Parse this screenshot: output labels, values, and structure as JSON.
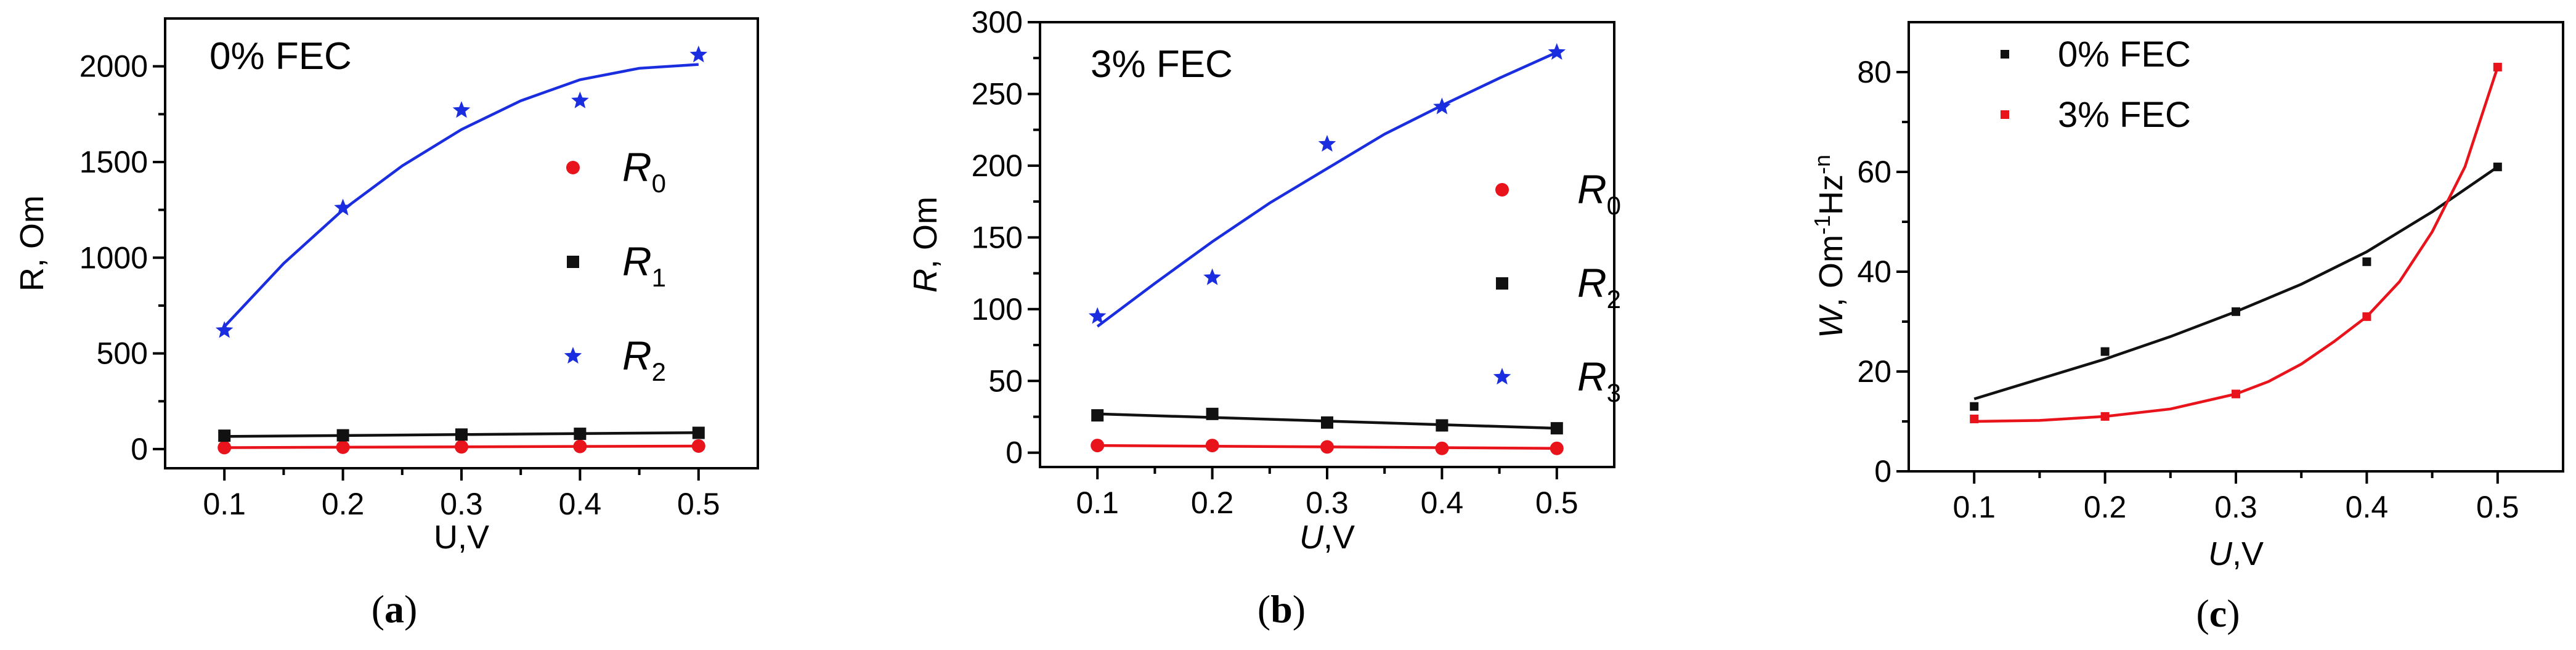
{
  "figure": {
    "captions": [
      "(a)",
      "(b)",
      "(c)"
    ]
  },
  "chart_data": [
    {
      "type": "scatter",
      "panel_caption": "(a)",
      "title": "0% FEC",
      "xlabel": "U,V",
      "ylabel": "R, Om",
      "xlim": [
        0.05,
        0.55
      ],
      "ylim": [
        -100,
        2250
      ],
      "xticks": [
        "0.1",
        "0.2",
        "0.3",
        "0.4",
        "0.5"
      ],
      "xtick_values": [
        0.1,
        0.2,
        0.3,
        0.4,
        0.5
      ],
      "yticks": [
        "0",
        "500",
        "1000",
        "1500",
        "2000"
      ],
      "ytick_values": [
        0,
        500,
        1000,
        1500,
        2000
      ],
      "series": [
        {
          "name": "R0",
          "label_main": "R",
          "label_sub": "0",
          "marker": "circle",
          "color": "#e8131b",
          "x": [
            0.1,
            0.2,
            0.3,
            0.4,
            0.5
          ],
          "values": [
            8,
            10,
            12,
            14,
            16
          ],
          "fit_x": [
            0.1,
            0.5
          ],
          "fit_y": [
            8,
            16
          ]
        },
        {
          "name": "R1",
          "label_main": "R",
          "label_sub": "1",
          "marker": "square",
          "color": "#111111",
          "x": [
            0.1,
            0.2,
            0.3,
            0.4,
            0.5
          ],
          "values": [
            70,
            72,
            76,
            80,
            85
          ],
          "fit_x": [
            0.1,
            0.5
          ],
          "fit_y": [
            66,
            86
          ]
        },
        {
          "name": "R2",
          "label_main": "R",
          "label_sub": "2",
          "marker": "star",
          "color": "#1a2ee0",
          "x": [
            0.1,
            0.2,
            0.3,
            0.4,
            0.5
          ],
          "values": [
            620,
            1260,
            1770,
            1820,
            2060
          ],
          "fit_x": [
            0.1,
            0.15,
            0.2,
            0.25,
            0.3,
            0.35,
            0.4,
            0.45,
            0.5
          ],
          "fit_y": [
            640,
            970,
            1250,
            1480,
            1670,
            1820,
            1930,
            1990,
            2010
          ]
        }
      ]
    },
    {
      "type": "scatter",
      "panel_caption": "(b)",
      "title": "3% FEC",
      "xlabel": "U,V",
      "ylabel": "R, Om",
      "xlim": [
        0.05,
        0.55
      ],
      "ylim": [
        -10,
        300
      ],
      "xticks": [
        "0.1",
        "0.2",
        "0.3",
        "0.4",
        "0.5"
      ],
      "xtick_values": [
        0.1,
        0.2,
        0.3,
        0.4,
        0.5
      ],
      "yticks": [
        "0",
        "50",
        "100",
        "150",
        "200",
        "250",
        "300"
      ],
      "ytick_values": [
        0,
        50,
        100,
        150,
        200,
        250,
        300
      ],
      "series": [
        {
          "name": "R0",
          "label_main": "R",
          "label_sub": "0",
          "marker": "circle",
          "color": "#e8131b",
          "x": [
            0.1,
            0.2,
            0.3,
            0.4,
            0.5
          ],
          "values": [
            5,
            5,
            4,
            3,
            3
          ],
          "fit_x": [
            0.1,
            0.5
          ],
          "fit_y": [
            5,
            3
          ]
        },
        {
          "name": "R2",
          "label_main": "R",
          "label_sub": "2",
          "marker": "square",
          "color": "#111111",
          "x": [
            0.1,
            0.2,
            0.3,
            0.4,
            0.5
          ],
          "values": [
            26,
            27,
            21,
            19,
            17
          ],
          "fit_x": [
            0.1,
            0.5
          ],
          "fit_y": [
            27,
            17
          ]
        },
        {
          "name": "R3",
          "label_main": "R",
          "label_sub": "3",
          "marker": "star",
          "color": "#1a2ee0",
          "x": [
            0.1,
            0.2,
            0.3,
            0.4,
            0.5
          ],
          "values": [
            95,
            122,
            215,
            241,
            279
          ],
          "fit_x": [
            0.1,
            0.15,
            0.2,
            0.25,
            0.3,
            0.35,
            0.4,
            0.45,
            0.5
          ],
          "fit_y": [
            88,
            118,
            147,
            174,
            198,
            222,
            242,
            261,
            279
          ]
        }
      ]
    },
    {
      "type": "scatter",
      "panel_caption": "(c)",
      "title": "",
      "xlabel": "U,V",
      "ylabel_main": "W, Om",
      "ylabel_sup1": "-1",
      "ylabel_mid": "Hz",
      "ylabel_sup2": "-n",
      "xlim": [
        0.05,
        0.55
      ],
      "ylim": [
        0,
        90
      ],
      "xticks": [
        "0.1",
        "0.2",
        "0.3",
        "0.4",
        "0.5"
      ],
      "xtick_values": [
        0.1,
        0.2,
        0.3,
        0.4,
        0.5
      ],
      "yticks": [
        "0",
        "20",
        "40",
        "60",
        "80"
      ],
      "ytick_values": [
        0,
        20,
        40,
        60,
        80
      ],
      "series": [
        {
          "name": "0% FEC",
          "marker": "square",
          "color": "#111111",
          "x": [
            0.1,
            0.2,
            0.3,
            0.4,
            0.5
          ],
          "values": [
            13,
            24,
            32,
            42,
            61
          ],
          "fit_x": [
            0.1,
            0.15,
            0.2,
            0.25,
            0.3,
            0.35,
            0.4,
            0.45,
            0.5
          ],
          "fit_y": [
            14.5,
            18.5,
            22.5,
            27,
            32,
            37.5,
            44,
            52,
            61
          ]
        },
        {
          "name": "3% FEC",
          "marker": "square",
          "color": "#e8131b",
          "x": [
            0.1,
            0.2,
            0.3,
            0.4,
            0.5
          ],
          "values": [
            10.5,
            11,
            15.5,
            31,
            81
          ],
          "fit_x": [
            0.1,
            0.15,
            0.2,
            0.25,
            0.3,
            0.325,
            0.35,
            0.375,
            0.4,
            0.425,
            0.45,
            0.475,
            0.5
          ],
          "fit_y": [
            10,
            10.2,
            11,
            12.5,
            15.5,
            18,
            21.5,
            26,
            31,
            38,
            48,
            61,
            81
          ]
        }
      ]
    }
  ]
}
